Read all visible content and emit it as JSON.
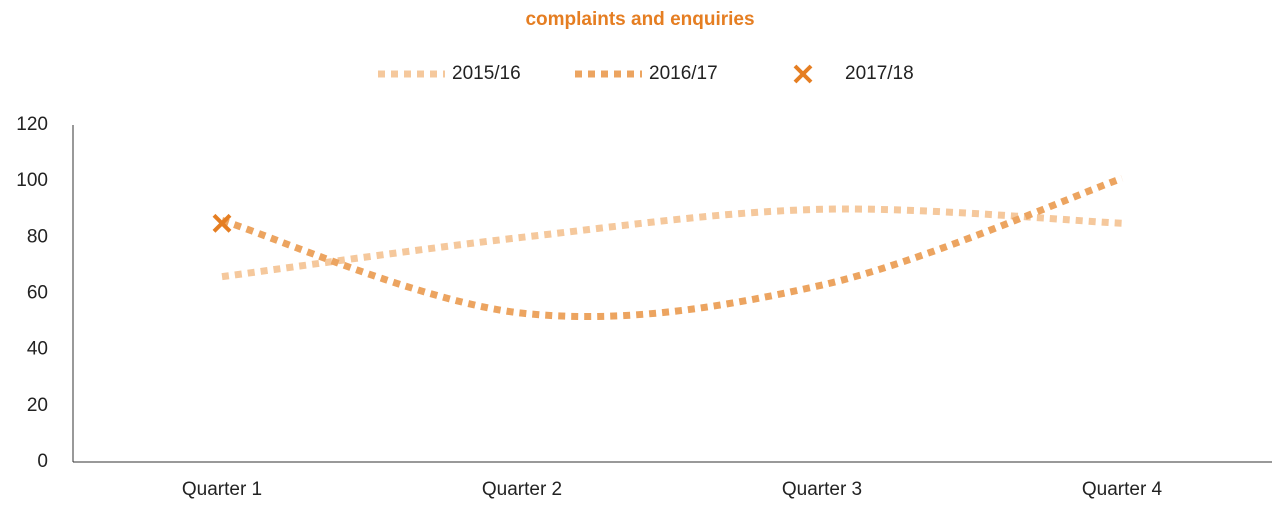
{
  "chart_data": {
    "type": "line",
    "title": "complaints and enquiries",
    "categories": [
      "Quarter 1",
      "Quarter 2",
      "Quarter 3",
      "Quarter 4"
    ],
    "series": [
      {
        "name": "2015/16",
        "color": "#f5c89c",
        "values": [
          66,
          80,
          90,
          85
        ]
      },
      {
        "name": "2016/17",
        "color": "#eca460",
        "values": [
          86,
          53,
          63,
          101
        ]
      },
      {
        "name": "2017/18",
        "color": "#e57e22",
        "values": [
          85,
          null,
          null,
          null
        ],
        "marker": "x"
      }
    ],
    "ylim": [
      0,
      120
    ],
    "yticks": [
      0,
      20,
      40,
      60,
      80,
      100,
      120
    ],
    "grid": false,
    "legend": "top"
  }
}
